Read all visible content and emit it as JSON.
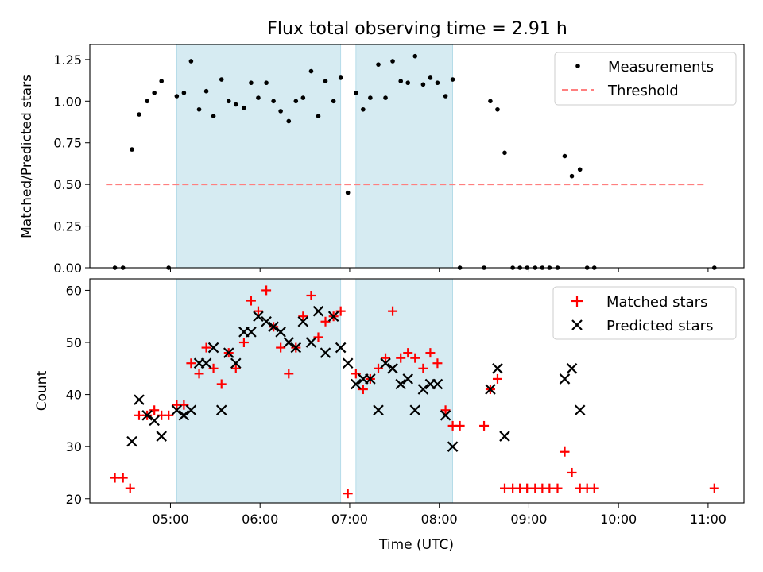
{
  "chart_data": [
    {
      "type": "scatter",
      "title": "Flux total observing time = 2.91 h",
      "xlabel": "",
      "ylabel": "Matched/Predicted stars",
      "xlim_hours": [
        4.1,
        11.4
      ],
      "ylim": [
        0,
        1.34
      ],
      "yticks": [
        "0.00",
        "0.25",
        "0.50",
        "0.75",
        "1.00",
        "1.25"
      ],
      "ytick_values": [
        0,
        0.25,
        0.5,
        0.75,
        1.0,
        1.25
      ],
      "shaded_intervals_hours": [
        [
          5.07,
          6.9
        ],
        [
          7.07,
          8.15
        ]
      ],
      "threshold": {
        "name": "Threshold",
        "value": 0.5,
        "x_range_hours": [
          4.28,
          10.95
        ],
        "color": "#ff7f7f"
      },
      "legend": [
        "Measurements",
        "Threshold"
      ],
      "legend_position": "top-right",
      "series": [
        {
          "name": "Measurements",
          "color": "#000000",
          "points": [
            [
              4.38,
              0.0
            ],
            [
              4.47,
              0.0
            ],
            [
              4.57,
              0.71
            ],
            [
              4.65,
              0.92
            ],
            [
              4.74,
              1.0
            ],
            [
              4.82,
              1.05
            ],
            [
              4.9,
              1.12
            ],
            [
              4.98,
              0.0
            ],
            [
              5.07,
              1.03
            ],
            [
              5.15,
              1.05
            ],
            [
              5.23,
              1.24
            ],
            [
              5.32,
              0.95
            ],
            [
              5.4,
              1.06
            ],
            [
              5.48,
              0.91
            ],
            [
              5.57,
              1.13
            ],
            [
              5.65,
              1.0
            ],
            [
              5.73,
              0.98
            ],
            [
              5.82,
              0.96
            ],
            [
              5.9,
              1.11
            ],
            [
              5.98,
              1.02
            ],
            [
              6.07,
              1.11
            ],
            [
              6.15,
              1.0
            ],
            [
              6.23,
              0.94
            ],
            [
              6.32,
              0.88
            ],
            [
              6.4,
              1.0
            ],
            [
              6.48,
              1.02
            ],
            [
              6.57,
              1.18
            ],
            [
              6.65,
              0.91
            ],
            [
              6.73,
              1.12
            ],
            [
              6.82,
              1.0
            ],
            [
              6.9,
              1.14
            ],
            [
              6.98,
              0.45
            ],
            [
              7.07,
              1.05
            ],
            [
              7.15,
              0.95
            ],
            [
              7.23,
              1.02
            ],
            [
              7.32,
              1.22
            ],
            [
              7.4,
              1.02
            ],
            [
              7.48,
              1.24
            ],
            [
              7.57,
              1.12
            ],
            [
              7.65,
              1.11
            ],
            [
              7.73,
              1.27
            ],
            [
              7.82,
              1.1
            ],
            [
              7.9,
              1.14
            ],
            [
              7.98,
              1.11
            ],
            [
              8.07,
              1.03
            ],
            [
              8.15,
              1.13
            ],
            [
              8.23,
              0.0
            ],
            [
              8.5,
              0.0
            ],
            [
              8.57,
              1.0
            ],
            [
              8.65,
              0.95
            ],
            [
              8.73,
              0.69
            ],
            [
              8.82,
              0.0
            ],
            [
              8.9,
              0.0
            ],
            [
              8.98,
              0.0
            ],
            [
              9.07,
              0.0
            ],
            [
              9.15,
              0.0
            ],
            [
              9.23,
              0.0
            ],
            [
              9.32,
              0.0
            ],
            [
              9.4,
              0.67
            ],
            [
              9.48,
              0.55
            ],
            [
              9.57,
              0.59
            ],
            [
              9.65,
              0.0
            ],
            [
              9.73,
              0.0
            ],
            [
              11.07,
              0.0
            ]
          ]
        }
      ]
    },
    {
      "type": "scatter",
      "title": "",
      "xlabel": "Time (UTC)",
      "ylabel": "Count",
      "xlim_hours": [
        4.1,
        11.4
      ],
      "ylim": [
        19.2,
        62.2
      ],
      "yticks": [
        "20",
        "30",
        "40",
        "50",
        "60"
      ],
      "ytick_values": [
        20,
        30,
        40,
        50,
        60
      ],
      "xticks": [
        "05:00",
        "06:00",
        "07:00",
        "08:00",
        "09:00",
        "10:00",
        "11:00"
      ],
      "xtick_values": [
        5,
        6,
        7,
        8,
        9,
        10,
        11
      ],
      "shaded_intervals_hours": [
        [
          5.07,
          6.9
        ],
        [
          7.07,
          8.15
        ]
      ],
      "legend": [
        "Matched stars",
        "Predicted stars"
      ],
      "legend_position": "top-right",
      "series": [
        {
          "name": "Matched stars",
          "marker": "plus",
          "color": "#ff0000",
          "points": [
            [
              4.38,
              24
            ],
            [
              4.47,
              24
            ],
            [
              4.55,
              22
            ],
            [
              4.65,
              36
            ],
            [
              4.74,
              36
            ],
            [
              4.82,
              37
            ],
            [
              4.9,
              36
            ],
            [
              4.98,
              36
            ],
            [
              5.07,
              38
            ],
            [
              5.15,
              38
            ],
            [
              5.23,
              46
            ],
            [
              5.32,
              44
            ],
            [
              5.4,
              49
            ],
            [
              5.48,
              45
            ],
            [
              5.57,
              42
            ],
            [
              5.65,
              48
            ],
            [
              5.73,
              45
            ],
            [
              5.82,
              50
            ],
            [
              5.9,
              58
            ],
            [
              5.98,
              56
            ],
            [
              6.07,
              60
            ],
            [
              6.15,
              53
            ],
            [
              6.23,
              49
            ],
            [
              6.32,
              44
            ],
            [
              6.4,
              49
            ],
            [
              6.48,
              55
            ],
            [
              6.57,
              59
            ],
            [
              6.65,
              51
            ],
            [
              6.73,
              54
            ],
            [
              6.82,
              55
            ],
            [
              6.9,
              56
            ],
            [
              6.98,
              21
            ],
            [
              7.07,
              44
            ],
            [
              7.15,
              41
            ],
            [
              7.23,
              43
            ],
            [
              7.32,
              45
            ],
            [
              7.4,
              47
            ],
            [
              7.48,
              56
            ],
            [
              7.57,
              47
            ],
            [
              7.65,
              48
            ],
            [
              7.73,
              47
            ],
            [
              7.82,
              45
            ],
            [
              7.9,
              48
            ],
            [
              7.98,
              46
            ],
            [
              8.07,
              37
            ],
            [
              8.15,
              34
            ],
            [
              8.23,
              34
            ],
            [
              8.5,
              34
            ],
            [
              8.57,
              41
            ],
            [
              8.65,
              43
            ],
            [
              8.73,
              22
            ],
            [
              8.82,
              22
            ],
            [
              8.9,
              22
            ],
            [
              8.98,
              22
            ],
            [
              9.07,
              22
            ],
            [
              9.15,
              22
            ],
            [
              9.23,
              22
            ],
            [
              9.32,
              22
            ],
            [
              9.4,
              29
            ],
            [
              9.48,
              25
            ],
            [
              9.57,
              22
            ],
            [
              9.65,
              22
            ],
            [
              9.73,
              22
            ],
            [
              11.07,
              22
            ]
          ]
        },
        {
          "name": "Predicted stars",
          "marker": "x",
          "color": "#000000",
          "points": [
            [
              4.57,
              31
            ],
            [
              4.65,
              39
            ],
            [
              4.74,
              36
            ],
            [
              4.82,
              35
            ],
            [
              4.9,
              32
            ],
            [
              5.07,
              37
            ],
            [
              5.15,
              36
            ],
            [
              5.23,
              37
            ],
            [
              5.32,
              46
            ],
            [
              5.4,
              46
            ],
            [
              5.48,
              49
            ],
            [
              5.57,
              37
            ],
            [
              5.65,
              48
            ],
            [
              5.73,
              46
            ],
            [
              5.82,
              52
            ],
            [
              5.9,
              52
            ],
            [
              5.98,
              55
            ],
            [
              6.07,
              54
            ],
            [
              6.15,
              53
            ],
            [
              6.23,
              52
            ],
            [
              6.32,
              50
            ],
            [
              6.4,
              49
            ],
            [
              6.48,
              54
            ],
            [
              6.57,
              50
            ],
            [
              6.65,
              56
            ],
            [
              6.73,
              48
            ],
            [
              6.82,
              55
            ],
            [
              6.9,
              49
            ],
            [
              6.98,
              46
            ],
            [
              7.07,
              42
            ],
            [
              7.15,
              43
            ],
            [
              7.23,
              43
            ],
            [
              7.32,
              37
            ],
            [
              7.4,
              46
            ],
            [
              7.48,
              45
            ],
            [
              7.57,
              42
            ],
            [
              7.65,
              43
            ],
            [
              7.73,
              37
            ],
            [
              7.82,
              41
            ],
            [
              7.9,
              42
            ],
            [
              7.98,
              42
            ],
            [
              8.07,
              36
            ],
            [
              8.15,
              30
            ],
            [
              8.57,
              41
            ],
            [
              8.65,
              45
            ],
            [
              8.73,
              32
            ],
            [
              9.4,
              43
            ],
            [
              9.48,
              45
            ],
            [
              9.57,
              37
            ]
          ]
        }
      ]
    }
  ]
}
